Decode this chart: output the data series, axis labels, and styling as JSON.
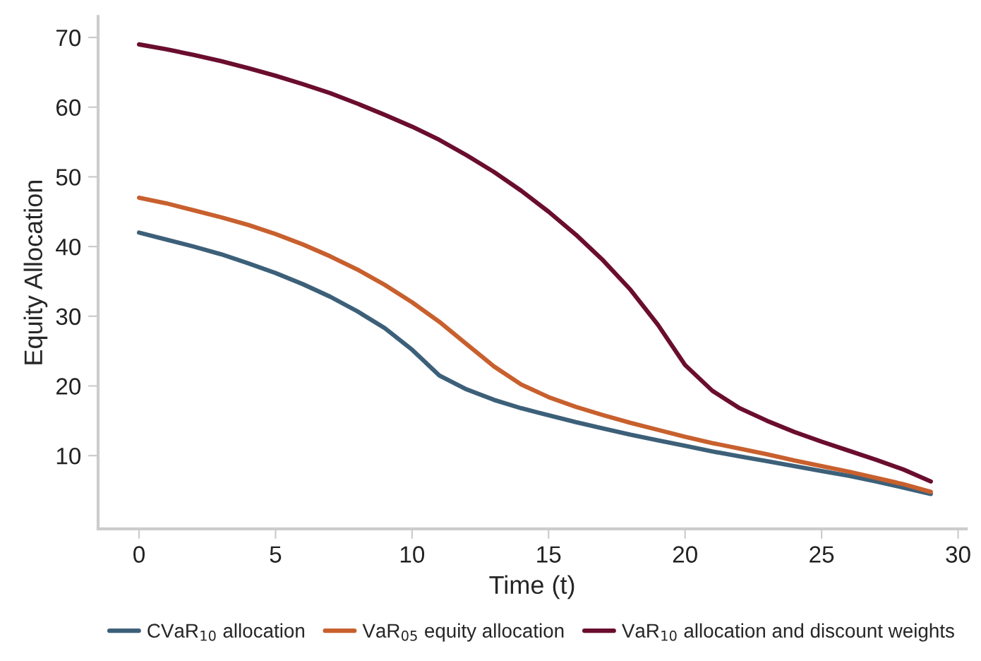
{
  "chart_data": {
    "type": "line",
    "xlabel": "Time (t)",
    "ylabel": "Equity Allocation",
    "x": [
      0,
      1,
      2,
      3,
      4,
      5,
      6,
      7,
      8,
      9,
      10,
      11,
      12,
      13,
      14,
      15,
      16,
      17,
      18,
      19,
      20,
      21,
      22,
      23,
      24,
      25,
      26,
      27,
      28,
      29
    ],
    "xlim": [
      -1.5,
      30.3
    ],
    "xticks": [
      0,
      5,
      10,
      15,
      20,
      25,
      30
    ],
    "ylim": [
      -0.5,
      73
    ],
    "yticks": [
      10,
      20,
      30,
      40,
      50,
      60,
      70
    ],
    "grid": false,
    "legend": "bottom",
    "marker": "none",
    "line_style": "solid",
    "series": [
      {
        "name": "CVaR$_{10}$ allocation",
        "color": "#3d6079",
        "values": [
          42,
          41,
          40,
          38.9,
          37.6,
          36.2,
          34.6,
          32.8,
          30.7,
          28.3,
          25.2,
          21.5,
          19.5,
          18,
          16.8,
          15.8,
          14.8,
          13.9,
          13,
          12.2,
          11.4,
          10.6,
          9.9,
          9.2,
          8.5,
          7.8,
          7.1,
          6.3,
          5.4,
          4.5
        ]
      },
      {
        "name": "VaR$_{05}$ equity allocation",
        "color": "#c8602e",
        "values": [
          47,
          46.2,
          45.2,
          44.2,
          43.1,
          41.8,
          40.3,
          38.6,
          36.7,
          34.5,
          32,
          29.2,
          26,
          22.8,
          20.2,
          18.4,
          17,
          15.8,
          14.7,
          13.7,
          12.7,
          11.8,
          11,
          10.2,
          9.3,
          8.5,
          7.7,
          6.8,
          5.9,
          4.8
        ]
      },
      {
        "name": "VaR$_{10}$ allocation and discount weights",
        "color": "#6a0d2e",
        "values": [
          69,
          68.3,
          67.5,
          66.6,
          65.6,
          64.5,
          63.3,
          62,
          60.5,
          58.9,
          57.2,
          55.3,
          53.1,
          50.7,
          48,
          45,
          41.7,
          38,
          33.8,
          28.8,
          23,
          19.3,
          16.8,
          15,
          13.4,
          12,
          10.7,
          9.4,
          8,
          6.3
        ]
      }
    ]
  }
}
